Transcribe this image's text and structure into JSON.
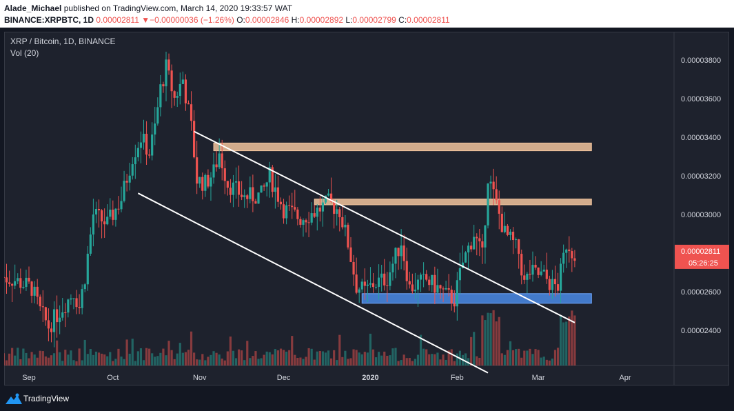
{
  "header": {
    "author": "Alade_Michael",
    "published_text": "published on TradingView.com, March 14, 2020 19:33:57 WAT",
    "symbol": "BINANCE:XRPBTC, 1D",
    "last": "0.00002811",
    "change": "▼−0.00000036 (−1.26%)",
    "o_label": "O:",
    "o_value": "0.00002846",
    "h_label": "H:",
    "h_value": "0.00002892",
    "l_label": "L:",
    "l_value": "0.00002799",
    "c_label": "C:",
    "c_value": "0.00002811"
  },
  "legend": {
    "title": "XRP / Bitcoin, 1D, BINANCE",
    "volume": "Vol (20)"
  },
  "footer": {
    "brand": "TradingView"
  },
  "colors": {
    "up": "#26a69a",
    "down": "#ef5350",
    "resistance_zone": "#f2c49d",
    "support_zone": "#4a8ae6",
    "channel_line": "#ffffff",
    "background": "#1e222d"
  },
  "chart_data": {
    "type": "candlestick",
    "title": "XRP / Bitcoin, 1D, BINANCE",
    "x_ticks": [
      "Sep",
      "Oct",
      "Nov",
      "Dec",
      "2020",
      "Feb",
      "Mar",
      "Apr"
    ],
    "y_ticks": [
      "0.00002400",
      "0.00002600",
      "0.00002800",
      "0.00003000",
      "0.00003200",
      "0.00003400",
      "0.00003600",
      "0.00003800"
    ],
    "ylim": [
      2.15e-05,
      3.9e-05
    ],
    "last_price_label": "0.00002811",
    "countdown_label": "05:26:25",
    "price_path": [
      [
        "2019-08-22",
        2.68e-05
      ],
      [
        "2019-08-28",
        2.66e-05
      ],
      [
        "2019-09-03",
        2.62e-05
      ],
      [
        "2019-09-06",
        2.5e-05
      ],
      [
        "2019-09-09",
        2.42e-05
      ],
      [
        "2019-09-14",
        2.52e-05
      ],
      [
        "2019-09-18",
        2.6e-05
      ],
      [
        "2019-09-20",
        2.52e-05
      ],
      [
        "2019-09-22",
        2.68e-05
      ],
      [
        "2019-09-25",
        3e-05
      ],
      [
        "2019-09-30",
        2.95e-05
      ],
      [
        "2019-10-05",
        3.08e-05
      ],
      [
        "2019-10-09",
        3.3e-05
      ],
      [
        "2019-10-12",
        3.4e-05
      ],
      [
        "2019-10-15",
        3.32e-05
      ],
      [
        "2019-10-17",
        3.45e-05
      ],
      [
        "2019-10-19",
        3.65e-05
      ],
      [
        "2019-10-21",
        3.76e-05
      ],
      [
        "2019-10-24",
        3.6e-05
      ],
      [
        "2019-10-27",
        3.7e-05
      ],
      [
        "2019-10-30",
        3.45e-05
      ],
      [
        "2019-11-01",
        3.18e-05
      ],
      [
        "2019-11-04",
        3.16e-05
      ],
      [
        "2019-11-07",
        3.22e-05
      ],
      [
        "2019-11-09",
        3.32e-05
      ],
      [
        "2019-11-12",
        3.16e-05
      ],
      [
        "2019-11-18",
        3.09e-05
      ],
      [
        "2019-11-24",
        3.1e-05
      ],
      [
        "2019-11-27",
        3.2e-05
      ],
      [
        "2019-12-02",
        3.03e-05
      ],
      [
        "2019-12-08",
        2.98e-05
      ],
      [
        "2019-12-14",
        3.02e-05
      ],
      [
        "2019-12-18",
        3.06e-05
      ],
      [
        "2019-12-20",
        3.04e-05
      ],
      [
        "2019-12-22",
        3.02e-05
      ],
      [
        "2019-12-25",
        2.85e-05
      ],
      [
        "2019-12-28",
        2.63e-05
      ],
      [
        "2019-12-31",
        2.6e-05
      ],
      [
        "2020-01-03",
        2.64e-05
      ],
      [
        "2020-01-08",
        2.67e-05
      ],
      [
        "2020-01-13",
        2.86e-05
      ],
      [
        "2020-01-16",
        2.62e-05
      ],
      [
        "2020-01-22",
        2.66e-05
      ],
      [
        "2020-01-26",
        2.62e-05
      ],
      [
        "2020-01-29",
        2.58e-05
      ],
      [
        "2020-02-01",
        2.56e-05
      ],
      [
        "2020-02-04",
        2.75e-05
      ],
      [
        "2020-02-08",
        2.9e-05
      ],
      [
        "2020-02-11",
        2.78e-05
      ],
      [
        "2020-02-13",
        3.2e-05
      ],
      [
        "2020-02-16",
        3.05e-05
      ],
      [
        "2020-02-19",
        2.9e-05
      ],
      [
        "2020-02-22",
        2.85e-05
      ],
      [
        "2020-02-24",
        2.8e-05
      ],
      [
        "2020-02-26",
        2.64e-05
      ],
      [
        "2020-02-28",
        2.7e-05
      ],
      [
        "2020-03-04",
        2.68e-05
      ],
      [
        "2020-03-07",
        2.63e-05
      ],
      [
        "2020-03-09",
        2.63e-05
      ],
      [
        "2020-03-10",
        2.7e-05
      ],
      [
        "2020-03-12",
        2.85e-05
      ],
      [
        "2020-03-13",
        2.84e-05
      ],
      [
        "2020-03-14",
        2.81e-05
      ]
    ],
    "channel_upper": [
      [
        "2019-10-30",
        3.43e-05
      ],
      [
        "2020-03-14",
        2.44e-05
      ]
    ],
    "channel_lower": [
      [
        "2019-10-10",
        3.11e-05
      ],
      [
        "2020-02-12",
        2.18e-05
      ]
    ],
    "resistance_zones": [
      {
        "from": "2019-11-06",
        "to": "2020-03-20",
        "low": 3.33e-05,
        "high": 3.37e-05
      },
      {
        "from": "2019-12-12",
        "to": "2020-03-20",
        "low": 3.05e-05,
        "high": 3.08e-05
      }
    ],
    "support_zone": {
      "from": "2019-12-29",
      "to": "2020-03-20",
      "low": 2.54e-05,
      "high": 2.59e-05
    }
  }
}
